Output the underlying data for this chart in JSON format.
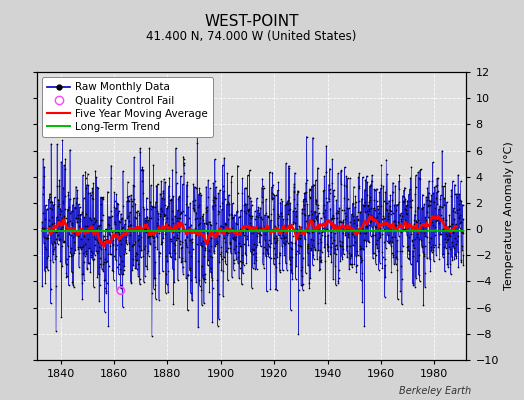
{
  "title": "WEST-POINT",
  "subtitle": "41.400 N, 74.000 W (United States)",
  "ylabel": "Temperature Anomaly (°C)",
  "credit": "Berkeley Earth",
  "xlim": [
    1831,
    1992
  ],
  "ylim": [
    -10,
    12
  ],
  "yticks": [
    -10,
    -8,
    -6,
    -4,
    -2,
    0,
    2,
    4,
    6,
    8,
    10,
    12
  ],
  "xticks": [
    1840,
    1860,
    1880,
    1900,
    1920,
    1940,
    1960,
    1980
  ],
  "bg_color": "#d3d3d3",
  "plot_bg_color": "#e0e0e0",
  "grid_color": "#ffffff",
  "raw_line_color": "#0000cc",
  "raw_dot_color": "#000000",
  "moving_avg_color": "#ff0000",
  "trend_color": "#00bb00",
  "qc_fail_color": "#ff44ff",
  "seed": 17,
  "start_year": 1833,
  "end_year": 1990,
  "noise_std": 2.2,
  "qc_year": 1862.5,
  "qc_val": -4.7,
  "title_fontsize": 11,
  "subtitle_fontsize": 8.5,
  "tick_fontsize": 8,
  "ylabel_fontsize": 8,
  "legend_fontsize": 7.5,
  "credit_fontsize": 7
}
